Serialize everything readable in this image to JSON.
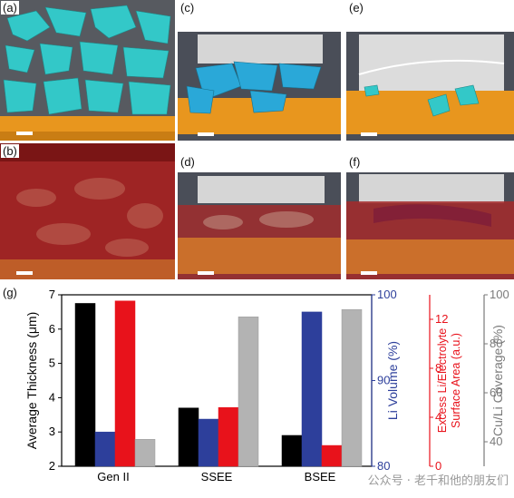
{
  "panels": {
    "a": {
      "label": "(a)"
    },
    "b": {
      "label": "(b)"
    },
    "c": {
      "label": "(c)"
    },
    "d": {
      "label": "(d)"
    },
    "e": {
      "label": "(e)"
    },
    "f": {
      "label": "(f)"
    }
  },
  "colors": {
    "black": "#000000",
    "blue": "#2d3f9b",
    "red": "#e8121b",
    "gray": "#b3b3b3",
    "cyan": "#33c8c8",
    "copper": "#e8961e",
    "darkred": "#8a1010"
  },
  "chart_data": {
    "type": "bar",
    "panel_label": "(g)",
    "categories": [
      "Gen II",
      "SSEE",
      "BSEE"
    ],
    "series": [
      {
        "axis": "Average Thickness (μm)",
        "color": "black",
        "values": [
          6.75,
          3.7,
          2.9
        ]
      },
      {
        "axis": "Li Volume (%)",
        "color": "blue",
        "values": [
          84,
          85.5,
          98
        ]
      },
      {
        "axis": "Excess Li/Electrolyte Surface Area (a.u.)",
        "color": "red",
        "values": [
          13.5,
          4.8,
          1.7
        ]
      },
      {
        "axis": "Cu/Li Coverage (%)",
        "color": "gray",
        "values": [
          41,
          91,
          94
        ]
      }
    ],
    "axes": [
      {
        "id": "left",
        "label": "Average Thickness (μm)",
        "range": [
          2,
          7
        ],
        "ticks": [
          "2",
          "3",
          "4",
          "5",
          "6",
          "7"
        ],
        "color": "#000000"
      },
      {
        "id": "right1",
        "label": "Li Volume (%)",
        "range": [
          80,
          100
        ],
        "ticks": [
          "80",
          "90",
          "100"
        ],
        "color": "#2d3f9b"
      },
      {
        "id": "right2",
        "label": "Excess Li/Electrolyte Surface Area (a.u.)",
        "range": [
          0,
          14
        ],
        "ticks": [
          "0",
          "4",
          "8",
          "12"
        ],
        "color": "#e8121b"
      },
      {
        "id": "right3",
        "label": "Cu/Li Coverage (%)",
        "range": [
          30,
          100
        ],
        "ticks": [
          "40",
          "60",
          "80",
          "100"
        ],
        "color": "#7a7a7a"
      }
    ]
  },
  "watermark": "公众号 · 老千和他的朋友们"
}
